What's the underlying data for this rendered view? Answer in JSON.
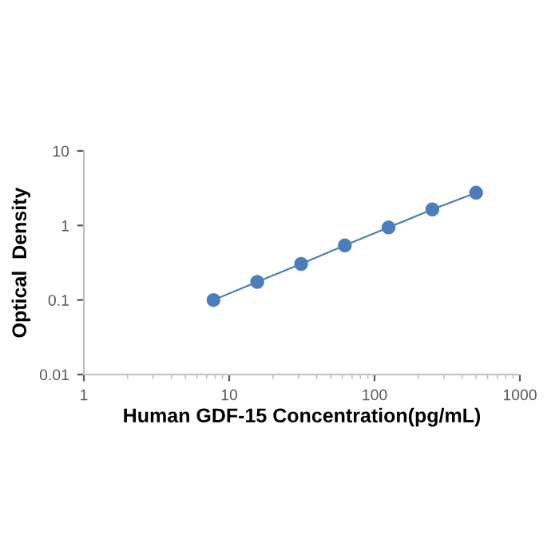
{
  "chart_data": {
    "type": "line",
    "xlabel": "Human GDF-15 Concentration(pg/mL)",
    "ylabel": "Optical  Density",
    "x": [
      7.8,
      15.6,
      31.25,
      62.5,
      125,
      250,
      500
    ],
    "series": [
      {
        "color": "#4a7ebb",
        "values": [
          0.1,
          0.175,
          0.305,
          0.54,
          0.94,
          1.64,
          2.75
        ]
      }
    ],
    "log": "xy",
    "xlim": [
      1,
      1000
    ],
    "ylim": [
      0.01,
      10
    ],
    "xticks": [
      1,
      10,
      100,
      1000
    ],
    "yticks": [
      0.01,
      0.1,
      1,
      10
    ],
    "marker": "circle",
    "line_style": "solid",
    "grid": false,
    "legend": false
  }
}
